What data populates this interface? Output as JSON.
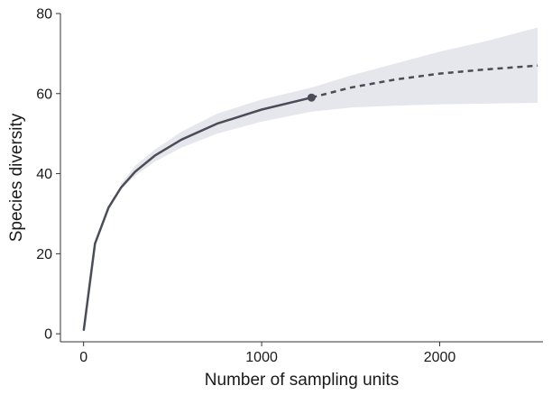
{
  "chart_data": {
    "type": "line",
    "title": "",
    "xlabel": "Number of sampling units",
    "ylabel": "Species diversity",
    "xlim": [
      -130,
      2580
    ],
    "ylim": [
      -2,
      80
    ],
    "x_ticks": [
      0,
      1000,
      2000
    ],
    "y_ticks": [
      0,
      20,
      40,
      60,
      80
    ],
    "grid": false,
    "legend": "none",
    "colors": {
      "line": "#4a4d57",
      "band": "#e6e7ec"
    },
    "series": [
      {
        "style": "solid",
        "x": [
          1,
          64,
          140,
          210,
          290,
          400,
          550,
          750,
          1000,
          1280
        ],
        "y": [
          1,
          22.5,
          31.5,
          36.5,
          40.5,
          44.5,
          48.5,
          52.5,
          56.0,
          59.0
        ]
      },
      {
        "style": "dashed",
        "x": [
          1280,
          1500,
          1750,
          2000,
          2250,
          2550
        ],
        "y": [
          59.0,
          61.5,
          63.5,
          65.0,
          66.0,
          67.0
        ]
      }
    ],
    "reference_point": {
      "x": 1280,
      "y": 59.0
    },
    "confidence_band": {
      "x": [
        210,
        290,
        400,
        550,
        750,
        1000,
        1280,
        1500,
        1750,
        2000,
        2250,
        2550
      ],
      "lower": [
        36.0,
        39.5,
        43.0,
        46.5,
        50.0,
        53.0,
        55.5,
        56.5,
        57.0,
        57.3,
        57.5,
        57.7
      ],
      "upper": [
        37.5,
        42.0,
        46.0,
        50.5,
        55.0,
        58.5,
        61.5,
        64.5,
        67.5,
        70.5,
        73.0,
        76.5
      ]
    }
  }
}
